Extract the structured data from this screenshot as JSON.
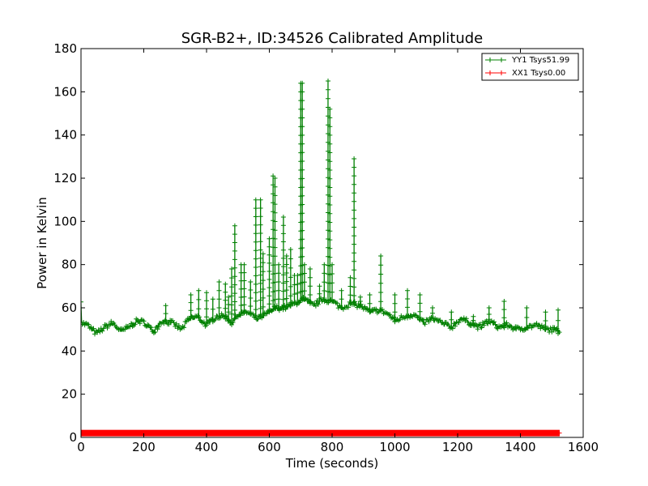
{
  "chart_data": {
    "type": "line",
    "title": "SGR-B2+, ID:34526 Calibrated Amplitude",
    "xlabel": "Time (seconds)",
    "ylabel": "Power in Kelvin",
    "xlim": [
      0,
      1600
    ],
    "ylim": [
      0,
      180
    ],
    "xticks": [
      0,
      200,
      400,
      600,
      800,
      1000,
      1200,
      1400,
      1600
    ],
    "yticks": [
      0,
      20,
      40,
      60,
      80,
      100,
      120,
      140,
      160,
      180
    ],
    "x_end": 1525,
    "marker": "+",
    "grid": false,
    "legend_position": "top-right",
    "series": [
      {
        "name": "YY1 Tsys51.99",
        "color": "#008000",
        "baseline_points": [
          [
            0,
            64
          ],
          [
            2,
            53
          ],
          [
            20,
            52
          ],
          [
            50,
            48
          ],
          [
            75,
            51
          ],
          [
            100,
            53
          ],
          [
            130,
            49
          ],
          [
            150,
            51
          ],
          [
            180,
            54
          ],
          [
            205,
            53
          ],
          [
            230,
            49
          ],
          [
            260,
            54
          ],
          [
            290,
            53
          ],
          [
            320,
            50
          ],
          [
            345,
            55
          ],
          [
            370,
            56
          ],
          [
            400,
            52
          ],
          [
            430,
            56
          ],
          [
            460,
            56
          ],
          [
            480,
            53
          ],
          [
            500,
            57
          ],
          [
            530,
            58
          ],
          [
            560,
            55
          ],
          [
            590,
            57
          ],
          [
            620,
            60
          ],
          [
            650,
            60
          ],
          [
            680,
            62
          ],
          [
            710,
            64
          ],
          [
            740,
            61
          ],
          [
            770,
            64
          ],
          [
            800,
            63
          ],
          [
            830,
            60
          ],
          [
            860,
            62
          ],
          [
            890,
            61
          ],
          [
            920,
            58
          ],
          [
            950,
            59
          ],
          [
            980,
            57
          ],
          [
            1000,
            54
          ],
          [
            1030,
            56
          ],
          [
            1060,
            57
          ],
          [
            1090,
            53
          ],
          [
            1120,
            55
          ],
          [
            1150,
            53
          ],
          [
            1180,
            51
          ],
          [
            1210,
            55
          ],
          [
            1240,
            53
          ],
          [
            1270,
            51
          ],
          [
            1300,
            54
          ],
          [
            1330,
            51
          ],
          [
            1360,
            52
          ],
          [
            1390,
            50
          ],
          [
            1420,
            51
          ],
          [
            1450,
            52
          ],
          [
            1480,
            50
          ],
          [
            1500,
            50
          ],
          [
            1525,
            49
          ]
        ],
        "spikes": [
          [
            270,
            61
          ],
          [
            350,
            66
          ],
          [
            375,
            68
          ],
          [
            400,
            67
          ],
          [
            420,
            64
          ],
          [
            440,
            72
          ],
          [
            460,
            71
          ],
          [
            470,
            65
          ],
          [
            480,
            78
          ],
          [
            490,
            98
          ],
          [
            510,
            80
          ],
          [
            520,
            80
          ],
          [
            540,
            72
          ],
          [
            557,
            110
          ],
          [
            572,
            110
          ],
          [
            580,
            85
          ],
          [
            600,
            92
          ],
          [
            612,
            121
          ],
          [
            618,
            120
          ],
          [
            630,
            80
          ],
          [
            645,
            102
          ],
          [
            655,
            84
          ],
          [
            668,
            87
          ],
          [
            680,
            75
          ],
          [
            690,
            75
          ],
          [
            700,
            164
          ],
          [
            705,
            164
          ],
          [
            712,
            80
          ],
          [
            730,
            78
          ],
          [
            760,
            70
          ],
          [
            775,
            80
          ],
          [
            787,
            165
          ],
          [
            793,
            152
          ],
          [
            800,
            80
          ],
          [
            830,
            68
          ],
          [
            858,
            74
          ],
          [
            870,
            129
          ],
          [
            890,
            65
          ],
          [
            920,
            66
          ],
          [
            955,
            84
          ],
          [
            1000,
            66
          ],
          [
            1040,
            68
          ],
          [
            1080,
            66
          ],
          [
            1120,
            60
          ],
          [
            1180,
            58
          ],
          [
            1250,
            56
          ],
          [
            1300,
            60
          ],
          [
            1348,
            63
          ],
          [
            1420,
            60
          ],
          [
            1480,
            58
          ],
          [
            1520,
            59
          ]
        ]
      },
      {
        "name": "XX1 Tsys0.00",
        "color": "#ff0000",
        "value": 2,
        "x_range": [
          0,
          1525
        ]
      }
    ]
  }
}
